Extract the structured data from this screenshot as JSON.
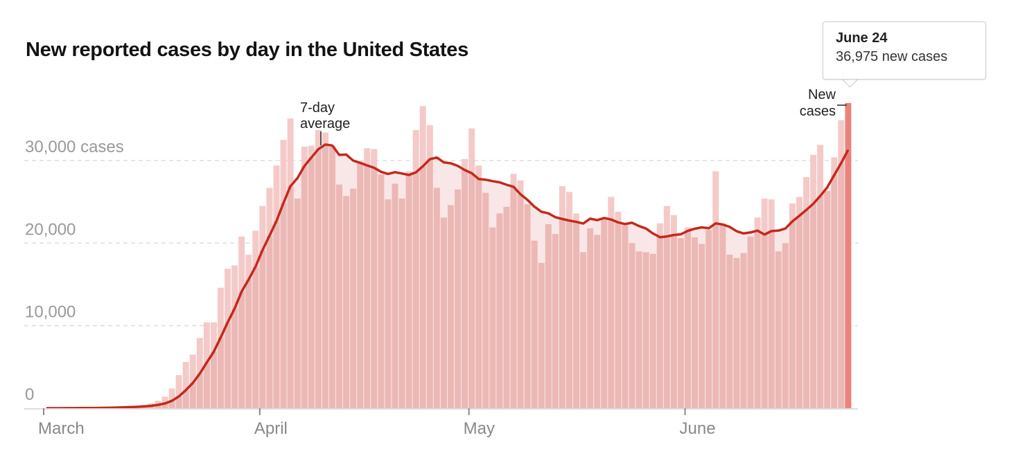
{
  "chart_data": {
    "type": "bar",
    "title": "New reported cases by day in the United States",
    "start_date": "March 1",
    "end_date": "June 24",
    "ylim": [
      0,
      37000
    ],
    "y_ticks": [
      {
        "value": 0,
        "label": "0"
      },
      {
        "value": 10000,
        "label": "10,000"
      },
      {
        "value": 20000,
        "label": "20,000"
      },
      {
        "value": 30000,
        "label": "30,000 cases"
      }
    ],
    "x_ticks": [
      {
        "day": 0,
        "label": "March"
      },
      {
        "day": 31,
        "label": "April"
      },
      {
        "day": 61,
        "label": "May"
      },
      {
        "day": 92,
        "label": "June"
      }
    ],
    "grid": true,
    "series": [
      {
        "name": "New cases",
        "type": "bar",
        "color": "#ebb8b5",
        "highlight_color": "#e8847d",
        "values": [
          0,
          0,
          10,
          20,
          20,
          30,
          50,
          60,
          100,
          100,
          150,
          200,
          250,
          300,
          400,
          600,
          900,
          1400,
          2400,
          4000,
          5600,
          6500,
          8500,
          10400,
          10400,
          14600,
          16900,
          17300,
          20800,
          18600,
          21500,
          24500,
          26700,
          29400,
          32500,
          35100,
          25400,
          31700,
          31800,
          33700,
          33400,
          31700,
          27100,
          25700,
          26600,
          29900,
          31500,
          31400,
          28300,
          25300,
          27200,
          25400,
          28700,
          33700,
          36600,
          34300,
          26700,
          23100,
          24600,
          26500,
          30200,
          33900,
          29400,
          26100,
          21900,
          23600,
          24400,
          28400,
          27600,
          24700,
          20300,
          17600,
          22300,
          21100,
          26900,
          26200,
          23600,
          18900,
          21800,
          21000,
          22900,
          25600,
          23800,
          22200,
          20000,
          19000,
          18900,
          18700,
          22400,
          24500,
          23400,
          20600,
          21900,
          20700,
          19900,
          21600,
          28700,
          22400,
          18600,
          18200,
          18800,
          20800,
          23100,
          25400,
          25300,
          19000,
          20000,
          24800,
          25600,
          28000,
          30700,
          31900,
          26300,
          30400,
          34900,
          36975
        ]
      },
      {
        "name": "7-day average",
        "type": "line",
        "color": "#c4281c",
        "window": 7
      }
    ],
    "annotations": {
      "avg_label_1": "7-day",
      "avg_label_2": "average",
      "bar_label_1": "New",
      "bar_label_2": "cases"
    }
  },
  "tooltip": {
    "date": "June 24",
    "value_text": "36,975 new cases"
  }
}
